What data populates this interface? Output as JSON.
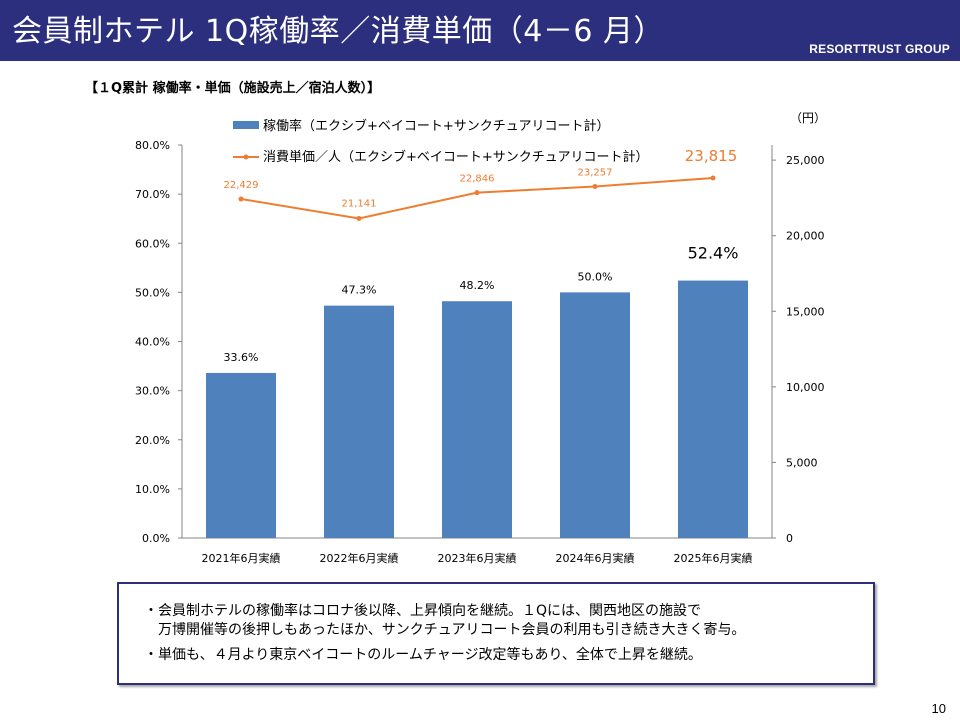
{
  "header": {
    "title": "会員制ホテル 1Q稼働率／消費単価（4－6 月）",
    "brand": "RESORTTRUST GROUP"
  },
  "subtitle": "【１Q累計 稼働率・単価（施設売上／宿泊人数）】",
  "chart_data": {
    "type": "bar",
    "categories": [
      "2021年6月実績",
      "2022年6月実績",
      "2023年6月実績",
      "2024年6月実績",
      "2025年6月実績"
    ],
    "series": [
      {
        "name": "稼働率（エクシブ+ベイコート+サンクチュアリコート計）",
        "type": "bar",
        "axis": "left",
        "color": "#4f81bd",
        "values": [
          33.6,
          47.3,
          48.2,
          50.0,
          52.4
        ],
        "labels": [
          "33.6%",
          "47.3%",
          "48.2%",
          "50.0%",
          "52.4%"
        ]
      },
      {
        "name": "消費単価／人（エクシブ+ベイコート+サンクチュアリコート計）",
        "type": "line",
        "axis": "right",
        "color": "#ed7d31",
        "values": [
          22429,
          21141,
          22846,
          23257,
          23815
        ],
        "labels": [
          "22,429",
          "21,141",
          "22,846",
          "23,257",
          "23,815"
        ]
      }
    ],
    "y_left": {
      "min": 0,
      "max": 80,
      "step": 10,
      "tick_labels": [
        "0.0%",
        "10.0%",
        "20.0%",
        "30.0%",
        "40.0%",
        "50.0%",
        "60.0%",
        "70.0%",
        "80.0%"
      ]
    },
    "y_right": {
      "min": 0,
      "max": 26000,
      "unit": "（円）",
      "tick_values": [
        0,
        5000,
        10000,
        15000,
        20000,
        25000
      ],
      "tick_labels": [
        "0",
        "5,000",
        "10,000",
        "15,000",
        "20,000",
        "25,000"
      ]
    },
    "grid": false,
    "legend_position": "top"
  },
  "notes": [
    "・会員制ホテルの稼働率はコロナ後以降、上昇傾向を継続。１Qには、関西地区の施設で",
    "　万博開催等の後押しもあったほか、サンクチュアリコート会員の利用も引き続き大きく寄与。",
    "・単価も、４月より東京ベイコートのルームチャージ改定等もあり、全体で上昇を継続。"
  ],
  "page_number": "10"
}
